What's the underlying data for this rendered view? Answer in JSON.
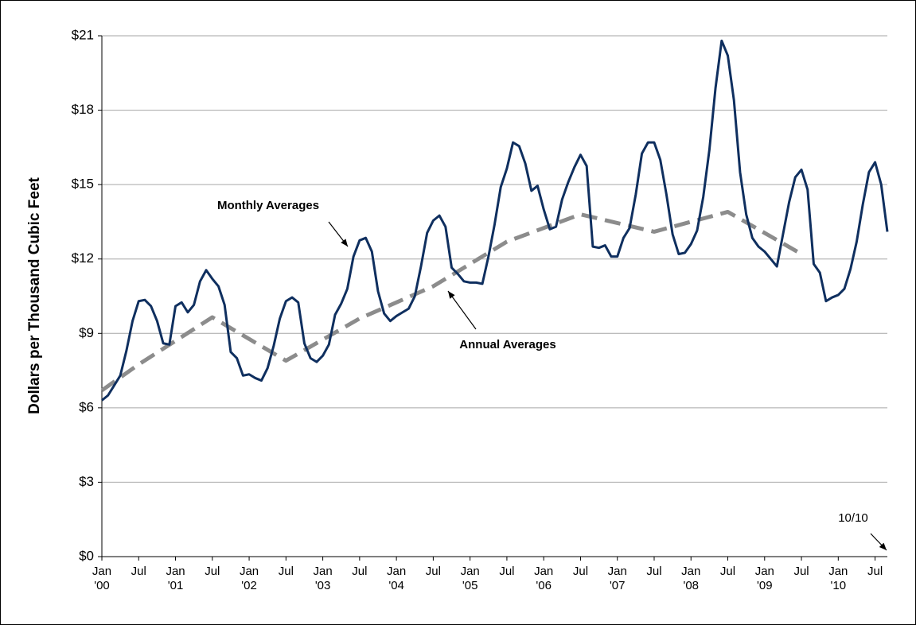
{
  "chart_data": {
    "type": "line",
    "y_label": "Dollars per Thousand Cubic Feet",
    "annotation": "10/10",
    "x": [
      "2000-01",
      "2000-02",
      "2000-03",
      "2000-04",
      "2000-05",
      "2000-06",
      "2000-07",
      "2000-08",
      "2000-09",
      "2000-10",
      "2000-11",
      "2000-12",
      "2001-01",
      "2001-02",
      "2001-03",
      "2001-04",
      "2001-05",
      "2001-06",
      "2001-07",
      "2001-08",
      "2001-09",
      "2001-10",
      "2001-11",
      "2001-12",
      "2002-01",
      "2002-02",
      "2002-03",
      "2002-04",
      "2002-05",
      "2002-06",
      "2002-07",
      "2002-08",
      "2002-09",
      "2002-10",
      "2002-11",
      "2002-12",
      "2003-01",
      "2003-02",
      "2003-03",
      "2003-04",
      "2003-05",
      "2003-06",
      "2003-07",
      "2003-08",
      "2003-09",
      "2003-10",
      "2003-11",
      "2003-12",
      "2004-01",
      "2004-02",
      "2004-03",
      "2004-04",
      "2004-05",
      "2004-06",
      "2004-07",
      "2004-08",
      "2004-09",
      "2004-10",
      "2004-11",
      "2004-12",
      "2005-01",
      "2005-02",
      "2005-03",
      "2005-04",
      "2005-05",
      "2005-06",
      "2005-07",
      "2005-08",
      "2005-09",
      "2005-10",
      "2005-11",
      "2005-12",
      "2006-01",
      "2006-02",
      "2006-03",
      "2006-04",
      "2006-05",
      "2006-06",
      "2006-07",
      "2006-08",
      "2006-09",
      "2006-10",
      "2006-11",
      "2006-12",
      "2007-01",
      "2007-02",
      "2007-03",
      "2007-04",
      "2007-05",
      "2007-06",
      "2007-07",
      "2007-08",
      "2007-09",
      "2007-10",
      "2007-11",
      "2007-12",
      "2008-01",
      "2008-02",
      "2008-03",
      "2008-04",
      "2008-05",
      "2008-06",
      "2008-07",
      "2008-08",
      "2008-09",
      "2008-10",
      "2008-11",
      "2008-12",
      "2009-01",
      "2009-02",
      "2009-03",
      "2009-04",
      "2009-05",
      "2009-06",
      "2009-07",
      "2009-08",
      "2009-09",
      "2009-10",
      "2009-11",
      "2009-12",
      "2010-01",
      "2010-02",
      "2010-03",
      "2010-04",
      "2010-05",
      "2010-06",
      "2010-07",
      "2010-08",
      "2010-09"
    ],
    "xlim": [
      "2000-01",
      "2010-09"
    ],
    "xticks": [
      {
        "value": "2000-01",
        "label": "Jan '00"
      },
      {
        "value": "2000-07",
        "label": "Jul"
      },
      {
        "value": "2001-01",
        "label": "Jan '01"
      },
      {
        "value": "2001-07",
        "label": "Jul"
      },
      {
        "value": "2002-01",
        "label": "Jan '02"
      },
      {
        "value": "2002-07",
        "label": "Jul"
      },
      {
        "value": "2003-01",
        "label": "Jan '03"
      },
      {
        "value": "2003-07",
        "label": "Jul"
      },
      {
        "value": "2004-01",
        "label": "Jan '04"
      },
      {
        "value": "2004-07",
        "label": "Jul"
      },
      {
        "value": "2005-01",
        "label": "Jan '05"
      },
      {
        "value": "2005-07",
        "label": "Jul"
      },
      {
        "value": "2006-01",
        "label": "Jan '06"
      },
      {
        "value": "2006-07",
        "label": "Jul"
      },
      {
        "value": "2007-01",
        "label": "Jan '07"
      },
      {
        "value": "2007-07",
        "label": "Jul"
      },
      {
        "value": "2008-01",
        "label": "Jan '08"
      },
      {
        "value": "2008-07",
        "label": "Jul"
      },
      {
        "value": "2009-01",
        "label": "Jan '09"
      },
      {
        "value": "2009-07",
        "label": "Jul"
      },
      {
        "value": "2010-01",
        "label": "Jan '10"
      },
      {
        "value": "2010-07",
        "label": "Jul"
      }
    ],
    "ylim": [
      0,
      21
    ],
    "yticks": [
      {
        "value": 0,
        "label": "$0"
      },
      {
        "value": 3,
        "label": "$3"
      },
      {
        "value": 6,
        "label": "$6"
      },
      {
        "value": 9,
        "label": "$9"
      },
      {
        "value": 12,
        "label": "$12"
      },
      {
        "value": 15,
        "label": "$15"
      },
      {
        "value": 18,
        "label": "$18"
      },
      {
        "value": 21,
        "label": "$21"
      }
    ],
    "grid": true,
    "series": [
      {
        "name": "Monthly Averages",
        "color": "#0f2f5f",
        "style": "solid",
        "values": [
          6.3,
          6.5,
          6.9,
          7.3,
          8.3,
          9.5,
          10.3,
          10.35,
          10.1,
          9.5,
          8.6,
          8.55,
          10.1,
          10.25,
          9.85,
          10.15,
          11.1,
          11.55,
          11.2,
          10.9,
          10.15,
          8.25,
          8.0,
          7.3,
          7.35,
          7.2,
          7.1,
          7.6,
          8.5,
          9.6,
          10.3,
          10.45,
          10.25,
          8.6,
          8.0,
          7.85,
          8.1,
          8.55,
          9.75,
          10.2,
          10.8,
          12.1,
          12.75,
          12.85,
          12.3,
          10.7,
          9.8,
          9.5,
          9.7,
          9.85,
          10.0,
          10.5,
          11.7,
          13.05,
          13.55,
          13.75,
          13.3,
          11.65,
          11.4,
          11.1,
          11.05,
          11.05,
          11.0,
          12.1,
          13.4,
          14.9,
          15.65,
          16.7,
          16.55,
          15.85,
          14.75,
          14.95,
          14.0,
          13.2,
          13.3,
          14.4,
          15.1,
          15.7,
          16.2,
          15.75,
          12.5,
          12.45,
          12.55,
          12.1,
          12.1,
          12.85,
          13.25,
          14.6,
          16.25,
          16.7,
          16.7,
          16.0,
          14.6,
          13.0,
          12.2,
          12.25,
          12.6,
          13.15,
          14.5,
          16.4,
          18.9,
          20.8,
          20.2,
          18.4,
          15.5,
          13.8,
          12.85,
          12.5,
          12.3,
          12.0,
          11.7,
          13.0,
          14.3,
          15.3,
          15.6,
          14.8,
          11.8,
          11.45,
          10.3,
          10.45,
          10.55,
          10.8,
          11.6,
          12.7,
          14.2,
          15.5,
          15.9,
          15.0,
          13.1
        ]
      },
      {
        "name": "Annual Averages",
        "color": "#8c8c8c",
        "style": "dashed",
        "x": [
          "2000-01",
          "2000-07",
          "2001-07",
          "2002-07",
          "2003-07",
          "2004-07",
          "2005-07",
          "2006-07",
          "2007-07",
          "2008-07",
          "2009-07"
        ],
        "values": [
          6.7,
          7.75,
          9.65,
          7.9,
          9.6,
          10.9,
          12.7,
          13.8,
          13.1,
          13.9,
          12.2
        ]
      }
    ]
  }
}
